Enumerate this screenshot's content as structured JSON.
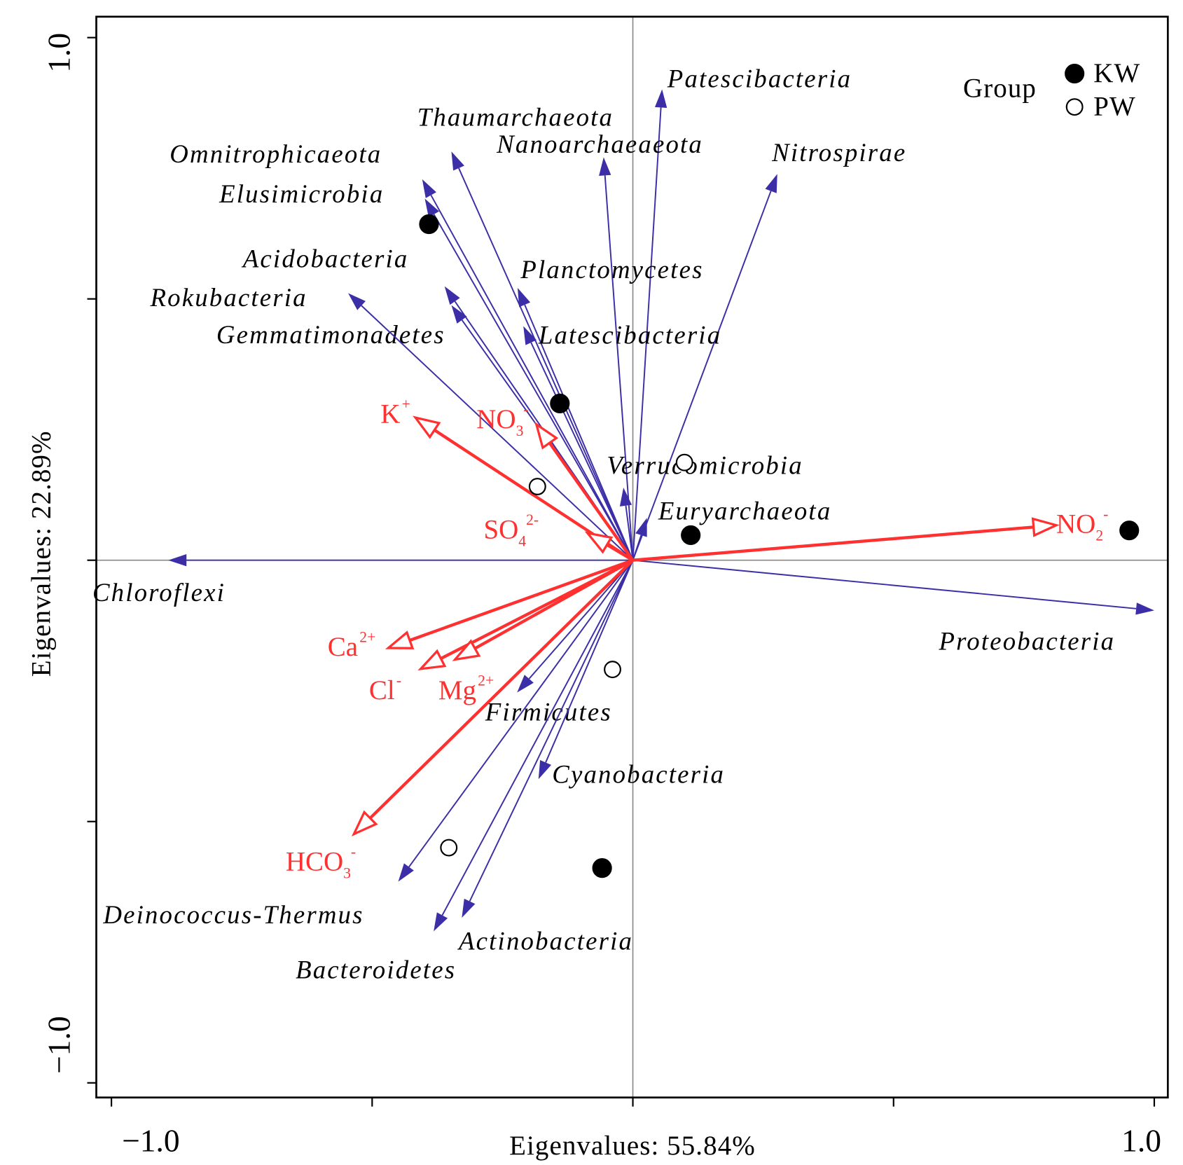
{
  "chart_data": {
    "type": "biplot",
    "xlabel": "Eigenvalues: 55.84%",
    "ylabel": "Eigenvalues: 22.89%",
    "xlim": [
      -1.029,
      1.026
    ],
    "ylim": [
      -1.028,
      1.04
    ],
    "xticks": [
      {
        "value": -1,
        "label": "−1.0"
      },
      {
        "value": 1,
        "label": "1.0"
      }
    ],
    "xminorticks": [
      -0.5,
      0,
      0.5
    ],
    "yticks": [
      {
        "value": -1,
        "label": "−1.0"
      },
      {
        "value": 1,
        "label": "1.0"
      }
    ],
    "yminorticks": [
      -0.5,
      0,
      0.5
    ],
    "species_color": "#3b2ea6",
    "env_color": "#ff3030",
    "species": [
      {
        "name": "Chloroflexi",
        "x": -0.891,
        "y": 0.0
      },
      {
        "name": "Proteobacteria",
        "x": 1.0,
        "y": -0.096
      },
      {
        "name": "Patescibacteria",
        "x": 0.056,
        "y": 0.901
      },
      {
        "name": "Nitrospirae",
        "x": 0.277,
        "y": 0.739
      },
      {
        "name": "Nanoarchaeaeota",
        "x": -0.056,
        "y": 0.771
      },
      {
        "name": "Thaumarchaeota",
        "x": -0.348,
        "y": 0.782
      },
      {
        "name": "Omnitrophicaeota",
        "x": -0.404,
        "y": 0.729
      },
      {
        "name": "Elusimicrobia",
        "x": -0.399,
        "y": 0.692
      },
      {
        "name": "Acidobacteria",
        "x": -0.361,
        "y": 0.524
      },
      {
        "name": "Gemmatimonadetes",
        "x": -0.348,
        "y": 0.488
      },
      {
        "name": "Rokubacteria",
        "x": -0.546,
        "y": 0.511
      },
      {
        "name": "Planctomycetes",
        "x": -0.221,
        "y": 0.521
      },
      {
        "name": "Latescibacteria",
        "x": -0.21,
        "y": 0.448
      },
      {
        "name": "Verrucomicrobia",
        "x": -0.018,
        "y": 0.139
      },
      {
        "name": "Euryarchaeota",
        "x": 0.027,
        "y": 0.081
      },
      {
        "name": "Firmicutes",
        "x": -0.222,
        "y": -0.253
      },
      {
        "name": "Cyanobacteria",
        "x": -0.181,
        "y": -0.419
      },
      {
        "name": "Deinococcus-Thermus",
        "x": -0.45,
        "y": -0.615
      },
      {
        "name": "Bacteroidetes",
        "x": -0.382,
        "y": -0.71
      },
      {
        "name": "Actinobacteria",
        "x": -0.328,
        "y": -0.684
      }
    ],
    "env": [
      {
        "name": "K",
        "sup": "+",
        "x": -0.417,
        "y": 0.273
      },
      {
        "name": "NO",
        "sub": "3",
        "sup": "-",
        "x": -0.185,
        "y": 0.26
      },
      {
        "name": "SO",
        "sub": "4",
        "sup": "2-",
        "x": -0.087,
        "y": 0.052
      },
      {
        "name": "NO",
        "sub": "2",
        "sup": "-",
        "x": 0.812,
        "y": 0.067
      },
      {
        "name": "Ca",
        "sup": "2+",
        "x": -0.469,
        "y": -0.168
      },
      {
        "name": "Cl",
        "sup": "-",
        "x": -0.407,
        "y": -0.208
      },
      {
        "name": "Mg",
        "sup": "2+",
        "x": -0.341,
        "y": -0.19
      },
      {
        "name": "HCO",
        "sub": "3",
        "sup": "-",
        "x": -0.535,
        "y": -0.524
      }
    ],
    "legend_title": "Group",
    "series": [
      {
        "name": "KW",
        "marker": "filled",
        "color": "#000000",
        "x": [
          -0.391,
          -0.14,
          0.111,
          0.952,
          -0.059
        ],
        "y": [
          0.643,
          0.3,
          0.048,
          0.057,
          -0.589
        ]
      },
      {
        "name": "PW",
        "marker": "open",
        "color": "#000000",
        "x": [
          0.099,
          -0.183,
          -0.039,
          -0.353
        ],
        "y": [
          0.187,
          0.141,
          -0.209,
          -0.55
        ]
      }
    ]
  }
}
